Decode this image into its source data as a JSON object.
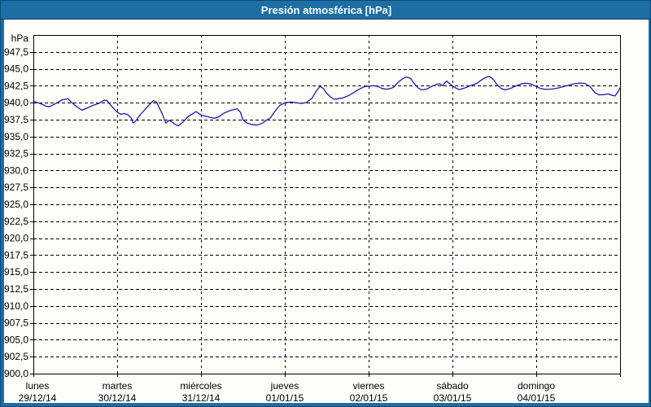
{
  "window": {
    "title": "Presión atmosférica [hPa]"
  },
  "colors": {
    "frame": "#1d6ea5",
    "frame_dark": "#0e4877",
    "titlebar_text": "#ffffff",
    "plot_bg": "#fefef8",
    "grid": "#000000",
    "axis": "#000000",
    "tick_text": "#000000",
    "line": "#1a1ab4"
  },
  "chart_data": {
    "type": "line",
    "title": "Presión atmosférica [hPa]",
    "unit_label": "hPa",
    "ylabel": "hPa",
    "xlabel": "",
    "ylim": [
      900,
      950
    ],
    "ytick_step": 2.5,
    "grid": "dashed",
    "legend_position": "none",
    "yticks": [
      {
        "v": 900.0,
        "label": "900,0"
      },
      {
        "v": 902.5,
        "label": "902,5"
      },
      {
        "v": 905.0,
        "label": "905,0"
      },
      {
        "v": 907.5,
        "label": "907,5"
      },
      {
        "v": 910.0,
        "label": "910,0"
      },
      {
        "v": 912.5,
        "label": "912,5"
      },
      {
        "v": 915.0,
        "label": "915,0"
      },
      {
        "v": 917.5,
        "label": "917,5"
      },
      {
        "v": 920.0,
        "label": "920,0"
      },
      {
        "v": 922.5,
        "label": "922,5"
      },
      {
        "v": 925.0,
        "label": "925,0"
      },
      {
        "v": 927.5,
        "label": "927,5"
      },
      {
        "v": 930.0,
        "label": "930,0"
      },
      {
        "v": 932.5,
        "label": "932,5"
      },
      {
        "v": 935.0,
        "label": "935,0"
      },
      {
        "v": 937.5,
        "label": "937,5"
      },
      {
        "v": 940.0,
        "label": "940,0"
      },
      {
        "v": 942.5,
        "label": "942,5"
      },
      {
        "v": 945.0,
        "label": "945,0"
      },
      {
        "v": 947.5,
        "label": "947,5"
      }
    ],
    "x_days": [
      {
        "name": "lunes",
        "date": "29/12/14"
      },
      {
        "name": "martes",
        "date": "30/12/14"
      },
      {
        "name": "miércoles",
        "date": "31/12/14"
      },
      {
        "name": "jueves",
        "date": "01/01/15"
      },
      {
        "name": "viernes",
        "date": "02/01/15"
      },
      {
        "name": "sábado",
        "date": "03/01/15"
      },
      {
        "name": "domingo",
        "date": "04/01/15"
      }
    ],
    "series": [
      {
        "name": "Presión atmosférica",
        "color": "#1a1ab4",
        "points": [
          [
            0.0,
            940.2
          ],
          [
            0.08,
            939.9
          ],
          [
            0.15,
            939.5
          ],
          [
            0.19,
            939.4
          ],
          [
            0.27,
            939.9
          ],
          [
            0.34,
            940.4
          ],
          [
            0.41,
            940.6
          ],
          [
            0.47,
            939.9
          ],
          [
            0.53,
            939.3
          ],
          [
            0.58,
            938.9
          ],
          [
            0.64,
            939.2
          ],
          [
            0.71,
            939.6
          ],
          [
            0.78,
            939.9
          ],
          [
            0.85,
            940.4
          ],
          [
            0.88,
            940.3
          ],
          [
            0.94,
            939.4
          ],
          [
            1.0,
            938.6
          ],
          [
            1.04,
            938.3
          ],
          [
            1.09,
            938.4
          ],
          [
            1.13,
            938.2
          ],
          [
            1.17,
            937.7
          ],
          [
            1.19,
            937.0
          ],
          [
            1.22,
            937.3
          ],
          [
            1.26,
            938.0
          ],
          [
            1.31,
            938.7
          ],
          [
            1.36,
            939.4
          ],
          [
            1.43,
            940.3
          ],
          [
            1.47,
            940.1
          ],
          [
            1.5,
            939.3
          ],
          [
            1.54,
            938.3
          ],
          [
            1.58,
            937.0
          ],
          [
            1.62,
            937.4
          ],
          [
            1.65,
            937.2
          ],
          [
            1.69,
            936.8
          ],
          [
            1.73,
            936.6
          ],
          [
            1.79,
            937.2
          ],
          [
            1.84,
            937.9
          ],
          [
            1.89,
            938.3
          ],
          [
            1.94,
            938.7
          ],
          [
            2.0,
            938.2
          ],
          [
            2.06,
            938.0
          ],
          [
            2.12,
            937.8
          ],
          [
            2.16,
            937.7
          ],
          [
            2.21,
            937.9
          ],
          [
            2.28,
            938.5
          ],
          [
            2.36,
            938.9
          ],
          [
            2.43,
            939.1
          ],
          [
            2.47,
            938.6
          ],
          [
            2.5,
            937.5
          ],
          [
            2.55,
            937.0
          ],
          [
            2.6,
            936.8
          ],
          [
            2.66,
            936.7
          ],
          [
            2.72,
            936.9
          ],
          [
            2.78,
            937.4
          ],
          [
            2.83,
            937.8
          ],
          [
            2.88,
            938.7
          ],
          [
            2.94,
            939.6
          ],
          [
            3.0,
            940.0
          ],
          [
            3.07,
            940.1
          ],
          [
            3.14,
            940.0
          ],
          [
            3.2,
            939.9
          ],
          [
            3.25,
            940.0
          ],
          [
            3.32,
            940.6
          ],
          [
            3.38,
            941.8
          ],
          [
            3.42,
            942.4
          ],
          [
            3.46,
            942.1
          ],
          [
            3.5,
            941.4
          ],
          [
            3.55,
            940.8
          ],
          [
            3.59,
            940.5
          ],
          [
            3.64,
            940.6
          ],
          [
            3.69,
            940.7
          ],
          [
            3.75,
            941.0
          ],
          [
            3.81,
            941.4
          ],
          [
            3.86,
            941.8
          ],
          [
            3.92,
            942.2
          ],
          [
            3.96,
            942.4
          ],
          [
            4.0,
            942.45
          ],
          [
            4.06,
            942.5
          ],
          [
            4.11,
            942.4
          ],
          [
            4.16,
            942.1
          ],
          [
            4.21,
            942.0
          ],
          [
            4.26,
            942.1
          ],
          [
            4.3,
            942.3
          ],
          [
            4.35,
            943.0
          ],
          [
            4.4,
            943.5
          ],
          [
            4.45,
            943.8
          ],
          [
            4.5,
            943.6
          ],
          [
            4.54,
            942.9
          ],
          [
            4.59,
            942.2
          ],
          [
            4.63,
            941.9
          ],
          [
            4.69,
            942.0
          ],
          [
            4.75,
            942.4
          ],
          [
            4.81,
            942.7
          ],
          [
            4.85,
            942.8
          ],
          [
            4.88,
            942.5
          ],
          [
            4.93,
            943.2
          ],
          [
            4.96,
            942.9
          ],
          [
            5.0,
            942.5
          ],
          [
            5.05,
            942.1
          ],
          [
            5.08,
            941.95
          ],
          [
            5.13,
            942.1
          ],
          [
            5.17,
            942.3
          ],
          [
            5.21,
            942.5
          ],
          [
            5.29,
            942.85
          ],
          [
            5.34,
            943.3
          ],
          [
            5.39,
            943.7
          ],
          [
            5.44,
            943.9
          ],
          [
            5.49,
            943.4
          ],
          [
            5.53,
            942.7
          ],
          [
            5.58,
            942.1
          ],
          [
            5.63,
            941.9
          ],
          [
            5.69,
            942.1
          ],
          [
            5.76,
            942.5
          ],
          [
            5.83,
            942.8
          ],
          [
            5.87,
            942.9
          ],
          [
            5.94,
            942.75
          ],
          [
            6.0,
            942.4
          ],
          [
            6.05,
            942.1
          ],
          [
            6.1,
            942.0
          ],
          [
            6.16,
            942.0
          ],
          [
            6.21,
            942.05
          ],
          [
            6.27,
            942.2
          ],
          [
            6.33,
            942.4
          ],
          [
            6.39,
            942.6
          ],
          [
            6.45,
            942.8
          ],
          [
            6.52,
            942.9
          ],
          [
            6.58,
            942.85
          ],
          [
            6.64,
            942.4
          ],
          [
            6.7,
            941.5
          ],
          [
            6.75,
            941.15
          ],
          [
            6.81,
            941.2
          ],
          [
            6.86,
            941.3
          ],
          [
            6.9,
            941.1
          ],
          [
            6.94,
            941.0
          ],
          [
            6.97,
            941.5
          ],
          [
            7.0,
            942.2
          ]
        ]
      }
    ]
  }
}
